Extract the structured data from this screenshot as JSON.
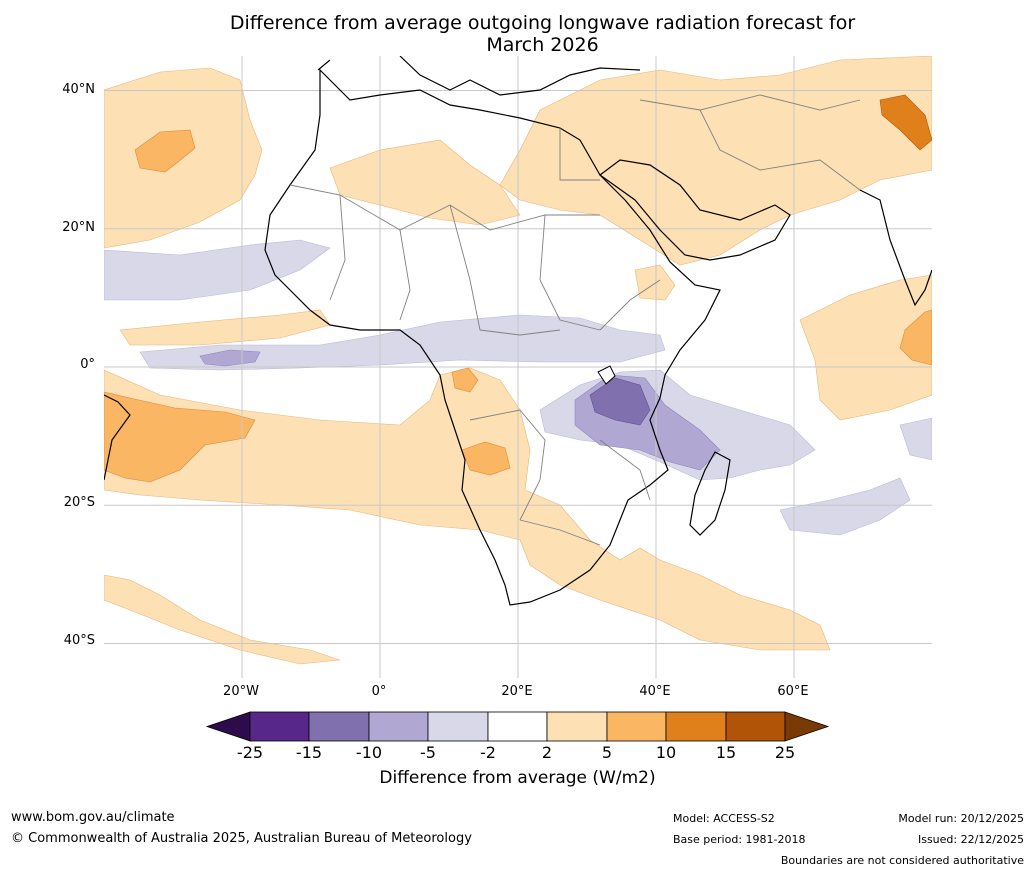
{
  "title": {
    "line1": "Difference from average outgoing longwave radiation forecast for",
    "line2": "March 2026"
  },
  "map": {
    "lat_labels": [
      "40°N",
      "20°N",
      "0°",
      "20°S",
      "40°S"
    ],
    "lon_labels": [
      "20°W",
      "0°",
      "20°E",
      "40°E",
      "60°E"
    ],
    "lat_values": [
      40,
      20,
      0,
      -20,
      -40
    ],
    "lon_values": [
      -20,
      0,
      20,
      40,
      60
    ],
    "extent": {
      "lon_min": -40,
      "lon_max": 80,
      "lat_min": -45,
      "lat_max": 45
    }
  },
  "colorbar": {
    "ticks": [
      "-25",
      "-15",
      "-10",
      "-5",
      "-2",
      "2",
      "5",
      "10",
      "15",
      "25"
    ],
    "colors": [
      "#2e0c4c",
      "#58278a",
      "#8070ad",
      "#b0a8d2",
      "#d8d8e9",
      "#ffffff",
      "#fde0b4",
      "#fbb663",
      "#e0801a",
      "#b15407",
      "#7a3a06"
    ],
    "label": "Difference from average (W/m2)"
  },
  "footer": {
    "website": "www.bom.gov.au/climate",
    "copyright": "© Commonwealth of Australia 2025, Australian Bureau of Meteorology",
    "model": "Model: ACCESS-S2",
    "base_period": "Base period: 1981-2018",
    "model_run": "Model run: 20/12/2025",
    "issued": "Issued: 22/12/2025",
    "disclaimer": "Boundaries are not considered authoritative"
  }
}
